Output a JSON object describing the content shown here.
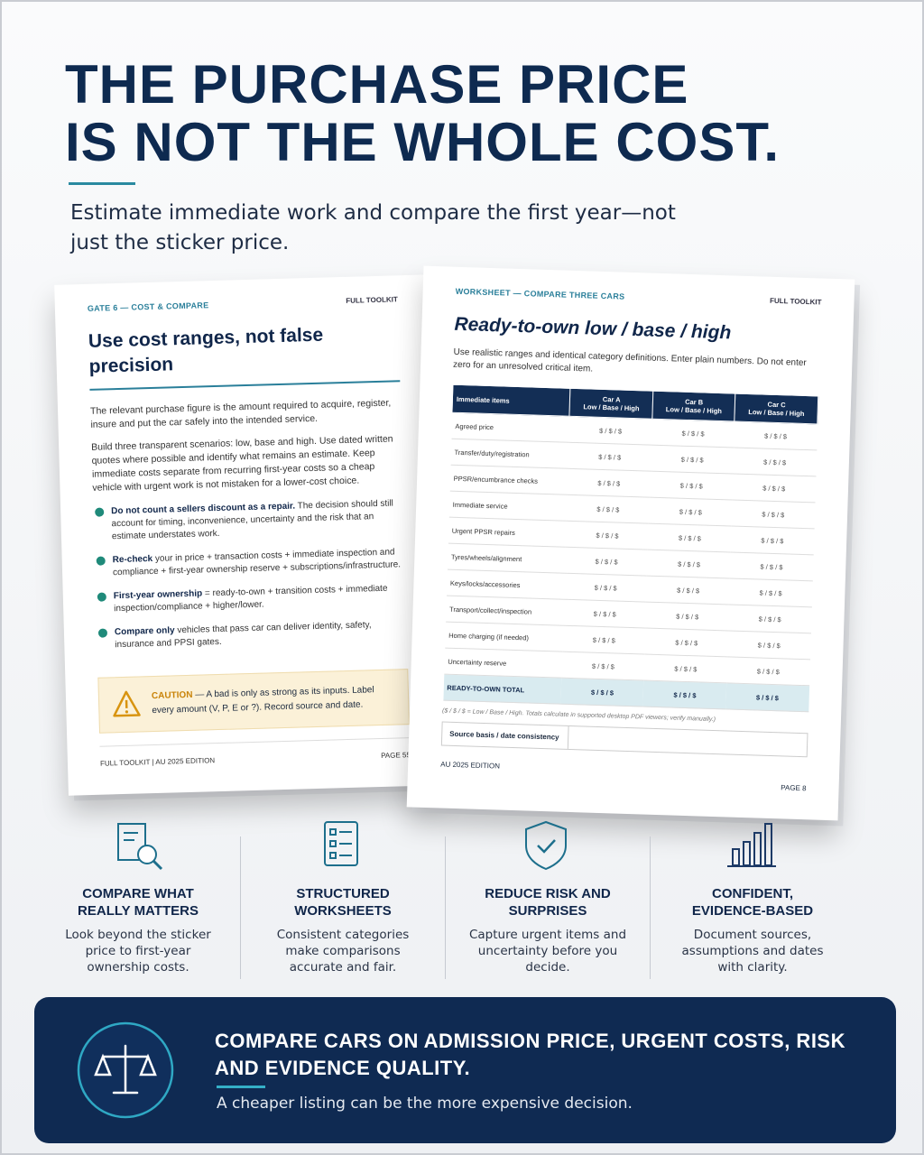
{
  "header": {
    "title_lines": [
      "THE PURCHASE PRICE",
      "IS NOT THE WHOLE COST."
    ],
    "subtitle": "Estimate immediate work and compare the first year—not just the sticker price."
  },
  "left_page": {
    "kicker": "GATE 6 — COST & COMPARE",
    "toolkit": "FULL TOOLKIT",
    "title": "Use cost ranges, not false precision",
    "paragraphs": [
      "The relevant purchase figure is the amount required to acquire, register, insure and put the car safely into the intended service.",
      "Build three transparent scenarios: low, base and high. Use dated written quotes where possible and identify what remains an estimate. Keep immediate costs separate from recurring first-year costs so a cheap vehicle with urgent work is not mistaken for a lower-cost choice."
    ],
    "bullets": [
      {
        "bold": "Do not count a sellers discount as a repair.",
        "text": "The decision should still account for timing, inconvenience, uncertainty and the risk that an estimate understates work."
      },
      {
        "bold": "Re-check",
        "text": "your in price + transaction costs + immediate inspection and compliance + first-year ownership reserve + subscriptions/infrastructure."
      },
      {
        "bold": "First-year ownership",
        "text": "= ready-to-own + transition costs + immediate inspection/compliance + higher/lower."
      },
      {
        "bold": "Compare only",
        "text": "vehicles that pass car can deliver identity, safety, insurance and PPSI gates."
      }
    ],
    "caution": {
      "label": "CAUTION",
      "text": "— A bad is only as strong as its inputs. Label every amount (V, P, E or ?). Record source and date."
    },
    "footer": "FULL TOOLKIT | AU 2025 EDITION",
    "page": "PAGE 55"
  },
  "right_page": {
    "kicker": "WORKSHEET — COMPARE THREE CARS",
    "toolkit": "FULL TOOLKIT",
    "title": "Ready-to-own low / base / high",
    "intro": "Use realistic ranges and identical category definitions. Enter plain numbers. Do not enter zero for an unresolved critical item.",
    "table": {
      "header": [
        "Immediate items",
        "Car A",
        "Car B",
        "Car C"
      ],
      "subheader": "Low / Base / High",
      "rows": [
        [
          "Agreed price",
          "$ / $ / $",
          "$ / $ / $",
          "$ / $ / $"
        ],
        [
          "Transfer/duty/registration",
          "$ / $ / $",
          "$ / $ / $",
          "$ / $ / $"
        ],
        [
          "PPSR/encumbrance checks",
          "$ / $ / $",
          "$ / $ / $",
          "$ / $ / $"
        ],
        [
          "Immediate service",
          "$ / $ / $",
          "$ / $ / $",
          "$ / $ / $"
        ],
        [
          "Urgent PPSR repairs",
          "$ / $ / $",
          "$ / $ / $",
          "$ / $ / $"
        ],
        [
          "Tyres/wheels/alignment",
          "$ / $ / $",
          "$ / $ / $",
          "$ / $ / $"
        ],
        [
          "Keys/locks/accessories",
          "$ / $ / $",
          "$ / $ / $",
          "$ / $ / $"
        ],
        [
          "Transport/collect/inspection",
          "$ / $ / $",
          "$ / $ / $",
          "$ / $ / $"
        ],
        [
          "Home charging (if needed)",
          "$ / $ / $",
          "$ / $ / $",
          "$ / $ / $"
        ],
        [
          "Uncertainty reserve",
          "$ / $ / $",
          "$ / $ / $",
          "$ / $ / $"
        ]
      ],
      "total": [
        "READY-TO-OWN TOTAL",
        "$ / $ / $",
        "$ / $ / $",
        "$ / $ / $"
      ]
    },
    "footnote": "($ / $ / $ = Low / Base / High. Totals calculate in supported desktop PDF viewers; verify manually.)",
    "source_label": "Source basis / date consistency",
    "edition": "AU 2025 EDITION",
    "page": "PAGE 8"
  },
  "features": [
    {
      "title": "COMPARE WHAT REALLY MATTERS",
      "text": "Look beyond the sticker price to first-year ownership costs."
    },
    {
      "title": "STRUCTURED WORKSHEETS",
      "text": "Consistent categories make comparisons accurate and fair."
    },
    {
      "title": "REDUCE RISK AND SURPRISES",
      "text": "Capture urgent items and uncertainty before you decide."
    },
    {
      "title": "CONFIDENT, EVIDENCE-BASED",
      "text": "Document sources, assumptions and dates with clarity."
    }
  ],
  "banner": {
    "headline": "COMPARE CARS ON ADMISSION PRICE, URGENT COSTS, RISK AND EVIDENCE QUALITY.",
    "text": "A cheaper listing can be the more expensive decision."
  }
}
